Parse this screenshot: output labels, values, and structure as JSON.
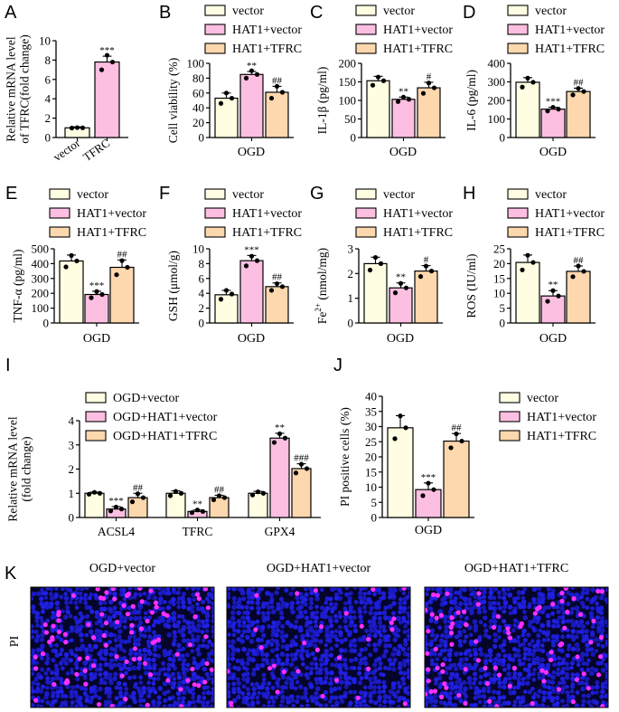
{
  "colors": {
    "vector": "#fffde2",
    "hat1_vector": "#fdbfe1",
    "hat1_tfrc": "#fdd7ad",
    "stroke": "#000000",
    "nucleus": "#2020e8",
    "pi": "#ff30ff"
  },
  "legend_sets": {
    "three": [
      "vector",
      "HAT1+vector",
      "HAT1+TFRC"
    ],
    "ogd_three": [
      "OGD+vector",
      "OGD+HAT1+vector",
      "OGD+HAT1+TFRC"
    ]
  },
  "chart_data": [
    {
      "panel": "A",
      "type": "bar",
      "ylabel": "Relative mRNA level of TFRC(fold change)",
      "ylabel_lines": [
        "Relative mRNA level",
        "of TFRC(fold change)"
      ],
      "ylim": [
        0,
        10
      ],
      "yticks": [
        0,
        2,
        4,
        6,
        8,
        10
      ],
      "categories": [
        "vector",
        "TFRC"
      ],
      "values": [
        1.0,
        7.8
      ],
      "errors": [
        0.1,
        0.6
      ],
      "points": [
        [
          0.98,
          1.0,
          1.02
        ],
        [
          7.0,
          7.8,
          8.5
        ]
      ],
      "sig": [
        "",
        "***"
      ],
      "xlabel": ""
    },
    {
      "panel": "B",
      "type": "bar",
      "ylabel": "Cell viability (%)",
      "ylim": [
        0,
        100
      ],
      "yticks": [
        0,
        20,
        40,
        60,
        80,
        100
      ],
      "group_label": "OGD",
      "series": [
        "vector",
        "HAT1+vector",
        "HAT1+TFRC"
      ],
      "values": [
        53,
        85,
        61
      ],
      "errors": [
        7,
        4,
        8
      ],
      "points": [
        [
          46,
          53,
          60
        ],
        [
          80,
          85,
          90
        ],
        [
          53,
          61,
          69
        ]
      ],
      "sig": [
        "",
        "**",
        "##"
      ]
    },
    {
      "panel": "C",
      "type": "bar",
      "ylabel": "IL-1β (pg/ml)",
      "ylim": [
        0,
        200
      ],
      "yticks": [
        0,
        50,
        100,
        150,
        200
      ],
      "group_label": "OGD",
      "series": [
        "vector",
        "HAT1+vector",
        "HAT1+TFRC"
      ],
      "values": [
        153,
        103,
        134
      ],
      "errors": [
        12,
        6,
        15
      ],
      "points": [
        [
          141,
          153,
          163
        ],
        [
          97,
          103,
          109
        ],
        [
          119,
          134,
          147
        ]
      ],
      "sig": [
        "",
        "**",
        "#"
      ]
    },
    {
      "panel": "D",
      "type": "bar",
      "ylabel": "IL-6 (pg/ml)",
      "ylim": [
        0,
        400
      ],
      "yticks": [
        0,
        100,
        200,
        300,
        400
      ],
      "group_label": "OGD",
      "series": [
        "vector",
        "HAT1+vector",
        "HAT1+TFRC"
      ],
      "values": [
        298,
        153,
        248
      ],
      "errors": [
        25,
        10,
        18
      ],
      "points": [
        [
          272,
          298,
          320
        ],
        [
          143,
          153,
          163
        ],
        [
          230,
          248,
          265
        ]
      ],
      "sig": [
        "",
        "***",
        "##"
      ]
    },
    {
      "panel": "E",
      "type": "bar",
      "ylabel": "TNF-α (pg/ml)",
      "ylim": [
        0,
        500
      ],
      "yticks": [
        0,
        100,
        200,
        300,
        400,
        500
      ],
      "group_label": "OGD",
      "series": [
        "vector",
        "HAT1+vector",
        "HAT1+TFRC"
      ],
      "values": [
        418,
        192,
        375
      ],
      "errors": [
        40,
        22,
        50
      ],
      "points": [
        [
          378,
          418,
          455
        ],
        [
          170,
          192,
          212
        ],
        [
          325,
          375,
          420
        ]
      ],
      "sig": [
        "",
        "***",
        "##"
      ]
    },
    {
      "panel": "F",
      "type": "bar",
      "ylabel": "GSH (μmol/g)",
      "ylim": [
        0,
        10
      ],
      "yticks": [
        0,
        2,
        4,
        6,
        8,
        10
      ],
      "group_label": "OGD",
      "series": [
        "vector",
        "HAT1+vector",
        "HAT1+TFRC"
      ],
      "values": [
        3.8,
        8.4,
        4.9
      ],
      "errors": [
        0.6,
        0.7,
        0.5
      ],
      "points": [
        [
          3.2,
          3.9,
          4.4
        ],
        [
          7.7,
          8.4,
          9.0
        ],
        [
          4.4,
          4.9,
          5.3
        ]
      ],
      "sig": [
        "",
        "***",
        "##"
      ]
    },
    {
      "panel": "G",
      "type": "bar",
      "ylabel": "Fe2+ (nmol/mg)",
      "ylabel_main": "Fe",
      "ylabel_sup": "2+",
      "ylabel_rest": " (nmol/mg)",
      "ylim": [
        0,
        3
      ],
      "yticks": [
        0,
        1,
        2,
        3
      ],
      "group_label": "OGD",
      "series": [
        "vector",
        "HAT1+vector",
        "HAT1+TFRC"
      ],
      "values": [
        2.4,
        1.42,
        2.1
      ],
      "errors": [
        0.26,
        0.2,
        0.22
      ],
      "points": [
        [
          2.14,
          2.4,
          2.65
        ],
        [
          1.22,
          1.42,
          1.6
        ],
        [
          1.88,
          2.1,
          2.3
        ]
      ],
      "sig": [
        "",
        "**",
        "#"
      ]
    },
    {
      "panel": "H",
      "type": "bar",
      "ylabel": "ROS (IU/ml)",
      "ylim": [
        0,
        25
      ],
      "yticks": [
        0,
        5,
        10,
        15,
        20,
        25
      ],
      "group_label": "OGD",
      "series": [
        "vector",
        "HAT1+vector",
        "HAT1+TFRC"
      ],
      "values": [
        20.4,
        9.1,
        17.4
      ],
      "errors": [
        2.5,
        1.8,
        1.8
      ],
      "points": [
        [
          17.9,
          20.4,
          22.8
        ],
        [
          7.3,
          9.1,
          10.9
        ],
        [
          15.6,
          17.4,
          19.2
        ]
      ],
      "sig": [
        "",
        "**",
        "##"
      ]
    },
    {
      "panel": "I",
      "type": "bar",
      "ylabel": "Relative mRNA level (fold change)",
      "ylabel_lines": [
        "Relative mRNA level",
        "(fold change)"
      ],
      "ylim": [
        0,
        4
      ],
      "yticks": [
        0,
        1,
        2,
        3,
        4
      ],
      "categories": [
        "ACSL4",
        "TFRC",
        "GPX4"
      ],
      "series": [
        "OGD+vector",
        "OGD+HAT1+vector",
        "OGD+HAT1+TFRC"
      ],
      "values": [
        [
          1.0,
          0.35,
          0.82
        ],
        [
          1.0,
          0.25,
          0.82
        ],
        [
          1.0,
          3.28,
          2.02
        ]
      ],
      "errors": [
        [
          0.05,
          0.1,
          0.18
        ],
        [
          0.1,
          0.06,
          0.1
        ],
        [
          0.08,
          0.2,
          0.2
        ]
      ],
      "points": [
        [
          [
            0.96,
            1.0,
            1.04
          ],
          [
            0.27,
            0.35,
            0.43
          ],
          [
            0.65,
            0.82,
            0.98
          ]
        ],
        [
          [
            0.9,
            1.0,
            1.08
          ],
          [
            0.2,
            0.25,
            0.31
          ],
          [
            0.73,
            0.82,
            0.9
          ]
        ],
        [
          [
            0.93,
            1.0,
            1.06
          ],
          [
            3.1,
            3.28,
            3.46
          ],
          [
            1.84,
            2.02,
            2.2
          ]
        ]
      ],
      "sig": [
        [
          "",
          "***",
          "##"
        ],
        [
          "",
          "**",
          "##"
        ],
        [
          "",
          "**",
          "###"
        ]
      ]
    },
    {
      "panel": "J",
      "type": "bar",
      "ylabel": "PI positive cells (%)",
      "ylim": [
        0,
        40
      ],
      "yticks": [
        0,
        5,
        10,
        15,
        20,
        25,
        30,
        35,
        40
      ],
      "group_label": "OGD",
      "series": [
        "vector",
        "HAT1+vector",
        "HAT1+TFRC"
      ],
      "values": [
        29.6,
        9.2,
        25.2
      ],
      "errors": [
        4,
        2.2,
        2.5
      ],
      "points": [
        [
          26,
          29.6,
          33.5
        ],
        [
          7.2,
          9.2,
          11.3
        ],
        [
          23,
          25.2,
          27.6
        ]
      ],
      "sig": [
        "",
        "***",
        "##"
      ]
    }
  ],
  "panel_k": {
    "label": "K",
    "row_label": "PI",
    "image_titles": [
      "OGD+vector",
      "OGD+HAT1+vector",
      "OGD+HAT1+TFRC"
    ],
    "pi_counts": [
      90,
      30,
      85
    ]
  }
}
